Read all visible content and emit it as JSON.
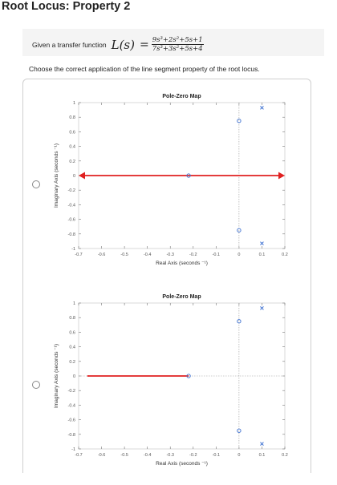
{
  "page": {
    "title": "Root Locus: Property 2"
  },
  "question": {
    "given_text": "Given a transfer function",
    "function_name": "L(s)",
    "equals": "=",
    "numerator": "9s³+2s²+5s+1",
    "denominator": "7s³+3s²+5s+4",
    "instruction": "Choose the correct application of the line segment property of the root locus."
  },
  "chart_data": [
    {
      "type": "scatter",
      "title": "Pole-Zero Map",
      "xlabel": "Real Axis (seconds ⁻¹)",
      "ylabel": "Imaginary Axis (seconds ⁻¹)",
      "xlim": [
        -0.7,
        0.2
      ],
      "ylim": [
        -1,
        1
      ],
      "xticks": [
        "-0.7",
        "-0.6",
        "-0.5",
        "-0.4",
        "-0.3",
        "-0.2",
        "-0.1",
        "0",
        "0.1",
        "0.2"
      ],
      "yticks": [
        "1",
        "0.8",
        "0.6",
        "0.4",
        "0.2",
        "0",
        "-0.2",
        "-0.4",
        "-0.6",
        "-0.8",
        "-1"
      ],
      "poles": [
        {
          "x": 0.1,
          "y": 0.93
        },
        {
          "x": 0.1,
          "y": -0.93
        }
      ],
      "zeros": [
        {
          "x": 0.0,
          "y": 0.75
        },
        {
          "x": 0.0,
          "y": -0.75
        },
        {
          "x": -0.22,
          "y": 0.0
        }
      ],
      "segments": [
        {
          "from": -0.22,
          "to": 0.2,
          "arrow_end": true
        },
        {
          "from": -0.22,
          "to": -0.7,
          "arrow_end": true
        }
      ]
    },
    {
      "type": "scatter",
      "title": "Pole-Zero Map",
      "xlabel": "Real Axis (seconds ⁻¹)",
      "ylabel": "Imaginary Axis (seconds ⁻¹)",
      "xlim": [
        -0.7,
        0.2
      ],
      "ylim": [
        -1,
        1
      ],
      "xticks": [
        "-0.7",
        "-0.6",
        "-0.5",
        "-0.4",
        "-0.3",
        "-0.2",
        "-0.1",
        "0",
        "0.1",
        "0.2"
      ],
      "yticks": [
        "1",
        "0.8",
        "0.6",
        "0.4",
        "0.2",
        "0",
        "-0.2",
        "-0.4",
        "-0.6",
        "-0.8",
        "-1"
      ],
      "poles": [
        {
          "x": 0.1,
          "y": 0.93
        },
        {
          "x": 0.1,
          "y": -0.93
        }
      ],
      "zeros": [
        {
          "x": 0.0,
          "y": 0.75
        },
        {
          "x": 0.0,
          "y": -0.75
        },
        {
          "x": -0.22,
          "y": 0.0
        }
      ],
      "segments": [
        {
          "from": -0.22,
          "to": -0.66,
          "arrow_end": false
        }
      ]
    }
  ],
  "colors": {
    "zero": "#3b6fd0",
    "pole": "#3b6fd0",
    "segment": "#e02020",
    "axis": "#333333",
    "grid": "#d7d7d7"
  }
}
